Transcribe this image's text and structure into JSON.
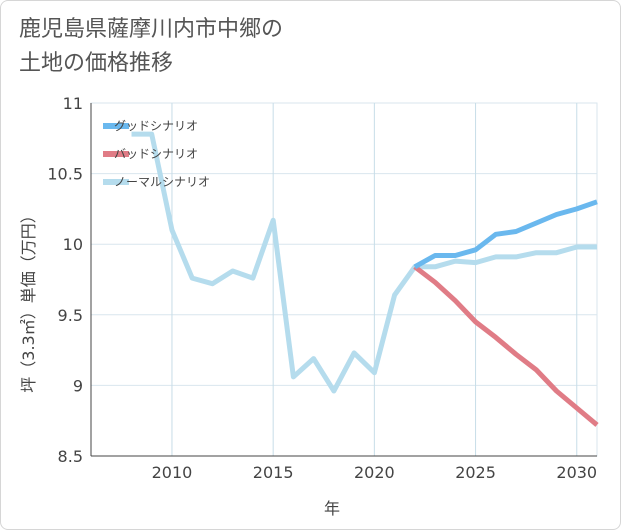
{
  "title_lines": [
    "鹿児島県薩摩川内市中郷の",
    "土地の価格推移"
  ],
  "chart_data": {
    "type": "line",
    "xlabel": "年",
    "ylabel": "坪（3.3㎡）単価（万円）",
    "xlim": [
      2006,
      2031
    ],
    "ylim": [
      8.5,
      11
    ],
    "xticks": [
      2010,
      2015,
      2020,
      2025,
      2030
    ],
    "yticks": [
      8.5,
      9,
      9.5,
      10,
      10.5,
      11
    ],
    "ytick_labels": [
      "8.5",
      "9",
      "9.5",
      "10",
      "10.5",
      "11"
    ],
    "grid": true,
    "legend_position": "top-left",
    "series": [
      {
        "name": "グッドシナリオ",
        "color": "#6ab8ee",
        "x": [
          2022,
          2023,
          2024,
          2025,
          2026,
          2027,
          2028,
          2029,
          2030,
          2031
        ],
        "y": [
          9.84,
          9.92,
          9.92,
          9.96,
          10.07,
          10.09,
          10.15,
          10.21,
          10.25,
          10.3
        ]
      },
      {
        "name": "バッドシナリオ",
        "color": "#e07c86",
        "x": [
          2022,
          2023,
          2024,
          2025,
          2026,
          2027,
          2028,
          2029,
          2030,
          2031
        ],
        "y": [
          9.84,
          9.73,
          9.6,
          9.45,
          9.34,
          9.22,
          9.11,
          8.96,
          8.84,
          8.72
        ]
      },
      {
        "name": "ノーマルシナリオ",
        "color": "#b5dced",
        "x": [
          2008,
          2009,
          2010,
          2011,
          2012,
          2013,
          2014,
          2015,
          2016,
          2017,
          2018,
          2019,
          2020,
          2021,
          2022,
          2023,
          2024,
          2025,
          2026,
          2027,
          2028,
          2029,
          2030,
          2031
        ],
        "y": [
          10.78,
          10.78,
          10.1,
          9.76,
          9.72,
          9.81,
          9.76,
          10.17,
          9.06,
          9.19,
          8.96,
          9.23,
          9.09,
          9.64,
          9.84,
          9.84,
          9.88,
          9.87,
          9.91,
          9.91,
          9.94,
          9.94,
          9.98,
          9.98
        ]
      }
    ]
  }
}
